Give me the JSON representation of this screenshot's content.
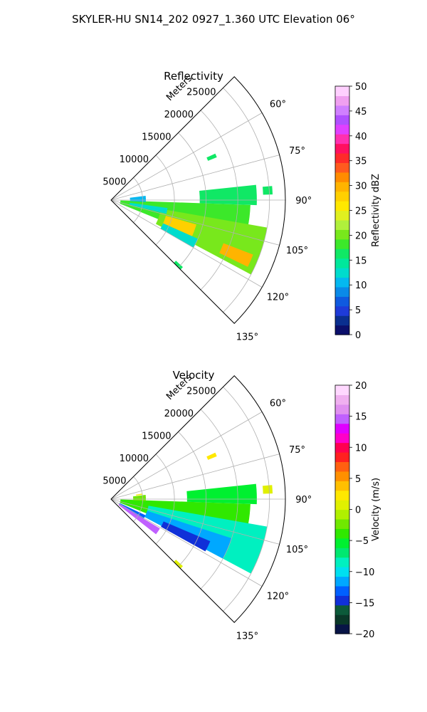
{
  "figure": {
    "suptitle": "SKYLER-HU  SN14_202  0927_1.360 UTC Elevation 06°"
  },
  "chart_data": [
    {
      "type": "heatmap",
      "projection": "polar sector",
      "title": "Reflectivity",
      "radial_axis_label": "Meters",
      "radial_ticks": [
        "5000",
        "10000",
        "15000",
        "20000",
        "25000"
      ],
      "radial_tick_values": [
        5000,
        10000,
        15000,
        20000,
        25000
      ],
      "rlim": [
        0,
        27500
      ],
      "theta_ticks": [
        "60°",
        "75°",
        "90°",
        "105°",
        "120°",
        "135°"
      ],
      "theta_tick_values": [
        60,
        75,
        90,
        105,
        120,
        135
      ],
      "theta_range_deg": [
        45,
        135
      ],
      "grid": true,
      "colorbar": {
        "label": "Reflectivity dBZ",
        "ticks": [
          "0",
          "5",
          "10",
          "15",
          "20",
          "25",
          "30",
          "35",
          "40",
          "45",
          "50"
        ],
        "range": [
          0,
          50
        ],
        "colors": [
          "#0b0f6b",
          "#0a2f8f",
          "#1e3bd8",
          "#0f5adf",
          "#0a8ae8",
          "#04b8f0",
          "#00dccd",
          "#00e89c",
          "#10e865",
          "#3ce82a",
          "#78e81c",
          "#b0f03c",
          "#e0f020",
          "#ffe800",
          "#ffd000",
          "#ffb400",
          "#ff8c00",
          "#ff5a1e",
          "#ff2a2a",
          "#ff1060",
          "#ff30b0",
          "#e040ff",
          "#b050ff",
          "#d080ff",
          "#f0a0f0",
          "#ffd0ff"
        ]
      },
      "echo_regions": [
        {
          "theta": [
            92,
            112
          ],
          "r": [
            1500,
            22000
          ],
          "value": 18
        },
        {
          "theta": [
            100,
            118
          ],
          "r": [
            8000,
            25000
          ],
          "value": 21
        },
        {
          "theta": [
            106,
            116
          ],
          "r": [
            9000,
            14000
          ],
          "value": 27
        },
        {
          "theta": [
            111,
            116
          ],
          "r": [
            19000,
            24000
          ],
          "value": 29
        },
        {
          "theta": [
            98,
            104
          ],
          "r": [
            3000,
            9000
          ],
          "value": 12
        },
        {
          "theta": [
            83,
            93
          ],
          "r": [
            3000,
            5500
          ],
          "value": 11
        },
        {
          "theta": [
            84,
            92
          ],
          "r": [
            14000,
            23000
          ],
          "value": 17
        },
        {
          "theta": [
            114,
            120
          ],
          "r": [
            9000,
            15000
          ],
          "value": 13
        },
        {
          "theta": [
            85,
            88
          ],
          "r": [
            24000,
            25500
          ],
          "value": 16
        },
        {
          "theta": [
            66,
            68
          ],
          "r": [
            16500,
            18000
          ],
          "value": 17
        },
        {
          "theta": [
            133,
            135
          ],
          "r": [
            14000,
            15500
          ],
          "value": 16
        }
      ]
    },
    {
      "type": "heatmap",
      "projection": "polar sector",
      "title": "Velocity",
      "radial_axis_label": "Meters",
      "radial_ticks": [
        "5000",
        "10000",
        "15000",
        "20000",
        "25000"
      ],
      "radial_tick_values": [
        5000,
        10000,
        15000,
        20000,
        25000
      ],
      "rlim": [
        0,
        27500
      ],
      "theta_ticks": [
        "60°",
        "75°",
        "90°",
        "105°",
        "120°",
        "135°"
      ],
      "theta_tick_values": [
        60,
        75,
        90,
        105,
        120,
        135
      ],
      "theta_range_deg": [
        45,
        135
      ],
      "grid": true,
      "colorbar": {
        "label": "Velocity (m/s)",
        "ticks": [
          "−20",
          "−15",
          "−10",
          "−5",
          "0",
          "5",
          "10",
          "15",
          "20"
        ],
        "range": [
          -20,
          20
        ],
        "colors": [
          "#081446",
          "#0a3828",
          "#0c5a3a",
          "#1030d8",
          "#0060ff",
          "#00a8ff",
          "#00e0f0",
          "#00f0c0",
          "#00e870",
          "#00f030",
          "#30e800",
          "#70e800",
          "#b0f000",
          "#e0f000",
          "#ffe800",
          "#ffc000",
          "#ff9000",
          "#ff6010",
          "#ff2020",
          "#ff0050",
          "#ff00c8",
          "#e000ff",
          "#c060ff",
          "#e090f0",
          "#f0b0f0",
          "#ffd8ff"
        ]
      },
      "echo_regions": [
        {
          "theta": [
            92,
            112
          ],
          "r": [
            1500,
            22000
          ],
          "value": -4
        },
        {
          "theta": [
            100,
            118
          ],
          "r": [
            6000,
            25000
          ],
          "value": -9
        },
        {
          "theta": [
            108,
            118
          ],
          "r": [
            6000,
            20000
          ],
          "value": -12
        },
        {
          "theta": [
            113,
            119
          ],
          "r": [
            9000,
            17000
          ],
          "value": -15
        },
        {
          "theta": [
            121,
            128
          ],
          "r": [
            1500,
            9000
          ],
          "value": 15
        },
        {
          "theta": [
            115,
            121
          ],
          "r": [
            1500,
            6000
          ],
          "value": -13
        },
        {
          "theta": [
            83,
            93
          ],
          "r": [
            3500,
            5500
          ],
          "value": -2
        },
        {
          "theta": [
            84,
            92
          ],
          "r": [
            12000,
            23000
          ],
          "value": -5
        },
        {
          "theta": [
            80,
            82
          ],
          "r": [
            4000,
            5000
          ],
          "value": 2
        },
        {
          "theta": [
            85,
            88
          ],
          "r": [
            24000,
            25500
          ],
          "value": 0
        },
        {
          "theta": [
            66,
            68
          ],
          "r": [
            16500,
            18000
          ],
          "value": 3
        },
        {
          "theta": [
            133,
            135
          ],
          "r": [
            14000,
            15500
          ],
          "value": 1
        }
      ]
    }
  ]
}
